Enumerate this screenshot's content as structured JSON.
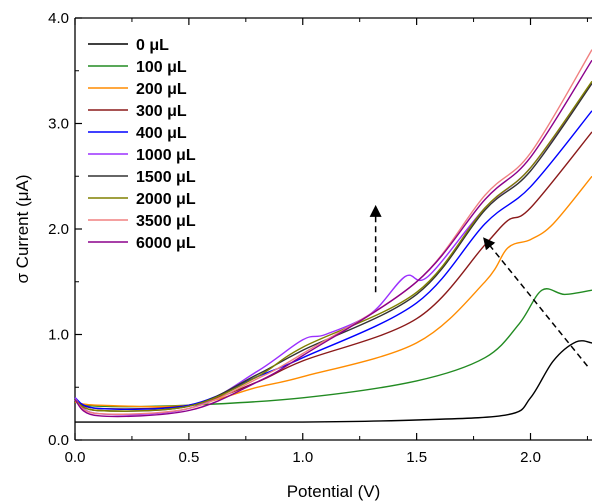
{
  "chart_data": {
    "type": "line",
    "title": "",
    "xlabel": "Potential (V)",
    "ylabel": "σ Current  (μA)",
    "xlim": [
      0.0,
      2.27
    ],
    "ylim": [
      0.0,
      4.0
    ],
    "x_ticks": [
      "0.0",
      "0.5",
      "1.0",
      "1.5",
      "2.0"
    ],
    "y_ticks": [
      "0.0",
      "1.0",
      "2.0",
      "3.0",
      "4.0"
    ],
    "grid": false,
    "legend_position": "top-left",
    "series": [
      {
        "name": "0 μL",
        "color": "#000000",
        "points": [
          [
            0.0,
            0.17
          ],
          [
            0.5,
            0.17
          ],
          [
            1.0,
            0.17
          ],
          [
            1.5,
            0.19
          ],
          [
            1.9,
            0.24
          ],
          [
            2.0,
            0.4
          ],
          [
            2.1,
            0.75
          ],
          [
            2.2,
            0.93
          ],
          [
            2.27,
            0.92
          ]
        ]
      },
      {
        "name": "100 μL",
        "color": "#228B22",
        "points": [
          [
            0.0,
            0.36
          ],
          [
            0.1,
            0.32
          ],
          [
            0.5,
            0.33
          ],
          [
            1.0,
            0.4
          ],
          [
            1.5,
            0.56
          ],
          [
            1.8,
            0.78
          ],
          [
            1.95,
            1.1
          ],
          [
            2.05,
            1.42
          ],
          [
            2.15,
            1.38
          ],
          [
            2.27,
            1.42
          ]
        ]
      },
      {
        "name": "200 μL",
        "color": "#FF8C00",
        "points": [
          [
            0.0,
            0.36
          ],
          [
            0.1,
            0.33
          ],
          [
            0.5,
            0.33
          ],
          [
            0.8,
            0.5
          ],
          [
            1.0,
            0.6
          ],
          [
            1.5,
            0.92
          ],
          [
            1.8,
            1.5
          ],
          [
            1.9,
            1.82
          ],
          [
            2.0,
            1.9
          ],
          [
            2.1,
            2.05
          ],
          [
            2.27,
            2.5
          ]
        ]
      },
      {
        "name": "300 μL",
        "color": "#8B1A1A",
        "points": [
          [
            0.0,
            0.38
          ],
          [
            0.1,
            0.3
          ],
          [
            0.5,
            0.33
          ],
          [
            0.8,
            0.55
          ],
          [
            1.0,
            0.75
          ],
          [
            1.5,
            1.15
          ],
          [
            1.8,
            1.85
          ],
          [
            1.9,
            2.08
          ],
          [
            2.0,
            2.2
          ],
          [
            2.27,
            2.92
          ]
        ]
      },
      {
        "name": "400 μL",
        "color": "#0000FF",
        "points": [
          [
            0.0,
            0.4
          ],
          [
            0.1,
            0.3
          ],
          [
            0.5,
            0.33
          ],
          [
            0.8,
            0.6
          ],
          [
            1.0,
            0.78
          ],
          [
            1.5,
            1.3
          ],
          [
            1.8,
            2.05
          ],
          [
            2.0,
            2.4
          ],
          [
            2.27,
            3.12
          ]
        ]
      },
      {
        "name": "1000 μL",
        "color": "#9B30FF",
        "points": [
          [
            0.0,
            0.4
          ],
          [
            0.1,
            0.25
          ],
          [
            0.5,
            0.3
          ],
          [
            0.8,
            0.65
          ],
          [
            1.0,
            0.95
          ],
          [
            1.1,
            1.0
          ],
          [
            1.3,
            1.2
          ],
          [
            1.45,
            1.55
          ],
          [
            1.55,
            1.55
          ],
          [
            1.8,
            2.2
          ],
          [
            2.0,
            2.58
          ],
          [
            2.27,
            3.38
          ]
        ]
      },
      {
        "name": "1500 μL",
        "color": "#333333",
        "points": [
          [
            0.0,
            0.38
          ],
          [
            0.1,
            0.28
          ],
          [
            0.5,
            0.32
          ],
          [
            0.8,
            0.62
          ],
          [
            1.0,
            0.85
          ],
          [
            1.5,
            1.38
          ],
          [
            1.8,
            2.18
          ],
          [
            2.0,
            2.55
          ],
          [
            2.27,
            3.38
          ]
        ]
      },
      {
        "name": "2000 μL",
        "color": "#808000",
        "points": [
          [
            0.0,
            0.38
          ],
          [
            0.1,
            0.28
          ],
          [
            0.5,
            0.32
          ],
          [
            0.8,
            0.6
          ],
          [
            1.0,
            0.88
          ],
          [
            1.5,
            1.4
          ],
          [
            1.8,
            2.2
          ],
          [
            2.0,
            2.58
          ],
          [
            2.27,
            3.4
          ]
        ]
      },
      {
        "name": "3500 μL",
        "color": "#F08080",
        "points": [
          [
            0.0,
            0.38
          ],
          [
            0.1,
            0.25
          ],
          [
            0.5,
            0.3
          ],
          [
            0.8,
            0.58
          ],
          [
            1.0,
            0.82
          ],
          [
            1.5,
            1.5
          ],
          [
            1.8,
            2.32
          ],
          [
            2.0,
            2.72
          ],
          [
            2.27,
            3.7
          ]
        ]
      },
      {
        "name": "6000 μL",
        "color": "#8B008B",
        "points": [
          [
            0.0,
            0.38
          ],
          [
            0.1,
            0.23
          ],
          [
            0.5,
            0.28
          ],
          [
            0.8,
            0.55
          ],
          [
            1.0,
            0.8
          ],
          [
            1.5,
            1.5
          ],
          [
            1.8,
            2.28
          ],
          [
            2.0,
            2.68
          ],
          [
            2.27,
            3.6
          ]
        ]
      }
    ],
    "annotations": [
      {
        "type": "dashed-arrow",
        "from": [
          1.32,
          1.4
        ],
        "to": [
          1.32,
          2.2
        ]
      },
      {
        "type": "dashed-arrow",
        "from": [
          2.25,
          0.7
        ],
        "to": [
          1.8,
          1.9
        ]
      }
    ]
  }
}
